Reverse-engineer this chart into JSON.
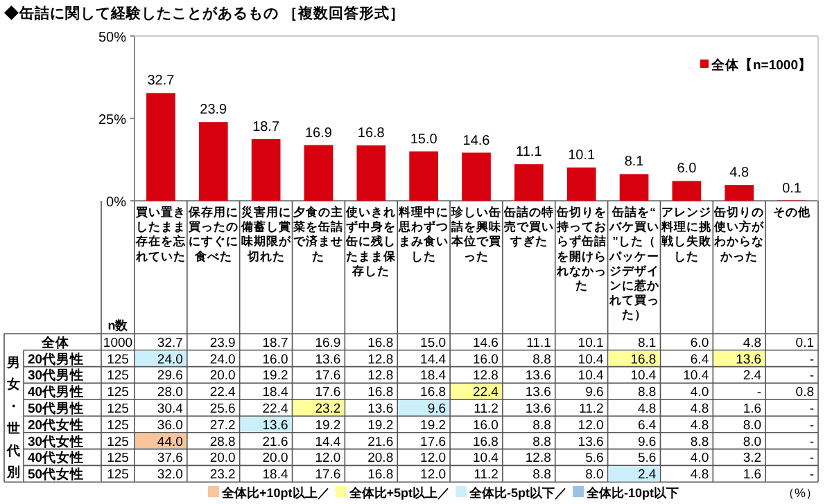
{
  "chart_data": [
    {
      "type": "bar",
      "title": "◆缶詰に関して経験したことがあるもの ［複数回答形式］",
      "categories": [
        "買い置きしたまま存在を忘れていた",
        "保存用に買ったのにすぐに食べた",
        "災害用に備蓄し賞味期限が切れた",
        "夕食の主菜を缶詰で済ませた",
        "使いきれず中身を缶に残したまま保存した",
        "料理中に思わずつまみ食いした",
        "珍しい缶詰を興味本位で買った",
        "缶詰の特売で買いすぎた",
        "缶切りを持っておらず缶詰を開けられなかった",
        "缶詰を“バケ買い”した（パッケージデザインに惹かれて買った）",
        "アレンジ料理に挑戦し失敗した",
        "缶切りの使い方がわからなかった",
        "その他"
      ],
      "series": [
        {
          "name": "全体【n=1000】",
          "color": "#d7000f",
          "values": [
            32.7,
            23.9,
            18.7,
            16.9,
            16.8,
            15.0,
            14.6,
            11.1,
            10.1,
            8.1,
            6.0,
            4.8,
            0.1
          ],
          "value_labels": [
            "32.7",
            "23.9",
            "18.7",
            "16.9",
            "16.8",
            "15.0",
            "14.6",
            "11.1",
            "10.1",
            "8.1",
            "6.0",
            "4.8",
            "0.1"
          ]
        }
      ],
      "ylim": [
        0,
        50
      ],
      "yticks": [
        {
          "value": 0,
          "label": "0%"
        },
        {
          "value": 25,
          "label": "25%"
        },
        {
          "value": 50,
          "label": "50%"
        }
      ],
      "legend": "top right"
    },
    {
      "type": "heatmap",
      "tick_labels": "y",
      "categories": [
        "買い置きしたまま存在を忘れていた",
        "保存用に買ったのにすぐに食べた",
        "災害用に備蓄し賞味期限が切れた",
        "夕食の主菜を缶詰で済ませた",
        "使いきれず中身を缶に残したまま保存した",
        "料理中に思わずつまみ食いした",
        "珍しい缶詰を興味本位で買った",
        "缶詰の特売で買いすぎた",
        "缶切りを持っておらず缶詰を開けられなかった",
        "缶詰を“バケ買い”した（パッケージデザインに惹かれて買った）",
        "アレンジ料理に挑戦し失敗した",
        "缶切りの使い方がわからなかった",
        "その他"
      ],
      "y_categories": [
        "全体",
        "20代男性",
        "30代男性",
        "40代男性",
        "50代男性",
        "20代女性",
        "30代女性",
        "40代女性",
        "50代女性"
      ],
      "y2_categories": [
        "1000",
        "125",
        "125",
        "125",
        "125",
        "125",
        "125",
        "125",
        "125"
      ],
      "y2label": "n数",
      "cells": [
        [
          32.7,
          23.9,
          18.7,
          16.9,
          16.8,
          15.0,
          14.6,
          11.1,
          10.1,
          8.1,
          6.0,
          4.8,
          0.1
        ],
        [
          24.0,
          24.0,
          16.0,
          13.6,
          12.8,
          14.4,
          16.0,
          8.8,
          10.4,
          16.8,
          6.4,
          13.6,
          null
        ],
        [
          29.6,
          20.0,
          19.2,
          17.6,
          12.8,
          18.4,
          12.8,
          13.6,
          10.4,
          10.4,
          10.4,
          2.4,
          null
        ],
        [
          28.0,
          22.4,
          18.4,
          17.6,
          16.8,
          16.8,
          22.4,
          13.6,
          9.6,
          8.8,
          4.0,
          null,
          0.8
        ],
        [
          30.4,
          25.6,
          22.4,
          23.2,
          13.6,
          9.6,
          11.2,
          13.6,
          11.2,
          4.8,
          4.8,
          1.6,
          null
        ],
        [
          36.0,
          27.2,
          13.6,
          19.2,
          19.2,
          19.2,
          16.0,
          8.8,
          12.0,
          6.4,
          4.8,
          8.0,
          null
        ],
        [
          44.0,
          28.8,
          21.6,
          14.4,
          21.6,
          17.6,
          16.8,
          8.8,
          13.6,
          9.6,
          8.8,
          8.0,
          null
        ],
        [
          37.6,
          20.0,
          20.0,
          12.0,
          20.8,
          12.0,
          10.4,
          12.8,
          5.6,
          5.6,
          4.0,
          3.2,
          null
        ],
        [
          32.0,
          23.2,
          18.4,
          17.6,
          16.8,
          12.0,
          11.2,
          8.8,
          8.0,
          2.4,
          4.8,
          1.6,
          null
        ]
      ],
      "cell_labels": [
        [
          "32.7",
          "23.9",
          "18.7",
          "16.9",
          "16.8",
          "15.0",
          "14.6",
          "11.1",
          "10.1",
          "8.1",
          "6.0",
          "4.8",
          "0.1"
        ],
        [
          "24.0",
          "24.0",
          "16.0",
          "13.6",
          "12.8",
          "14.4",
          "16.0",
          "8.8",
          "10.4",
          "16.8",
          "6.4",
          "13.6",
          "-"
        ],
        [
          "29.6",
          "20.0",
          "19.2",
          "17.6",
          "12.8",
          "18.4",
          "12.8",
          "13.6",
          "10.4",
          "10.4",
          "10.4",
          "2.4",
          "-"
        ],
        [
          "28.0",
          "22.4",
          "18.4",
          "17.6",
          "16.8",
          "16.8",
          "22.4",
          "13.6",
          "9.6",
          "8.8",
          "4.0",
          "-",
          "0.8"
        ],
        [
          "30.4",
          "25.6",
          "22.4",
          "23.2",
          "13.6",
          "9.6",
          "11.2",
          "13.6",
          "11.2",
          "4.8",
          "4.8",
          "1.6",
          "-"
        ],
        [
          "36.0",
          "27.2",
          "13.6",
          "19.2",
          "19.2",
          "19.2",
          "16.0",
          "8.8",
          "12.0",
          "6.4",
          "4.8",
          "8.0",
          "-"
        ],
        [
          "44.0",
          "28.8",
          "21.6",
          "14.4",
          "21.6",
          "17.6",
          "16.8",
          "8.8",
          "13.6",
          "9.6",
          "8.8",
          "8.0",
          "-"
        ],
        [
          "37.6",
          "20.0",
          "20.0",
          "12.0",
          "20.8",
          "12.0",
          "10.4",
          "12.8",
          "5.6",
          "5.6",
          "4.0",
          "3.2",
          "-"
        ],
        [
          "32.0",
          "23.2",
          "18.4",
          "17.6",
          "16.8",
          "12.0",
          "11.2",
          "8.8",
          "8.0",
          "2.4",
          "4.8",
          "1.6",
          "-"
        ]
      ],
      "annotations": [
        "男女・世代別",
        "全体比+10pt以上／",
        "全体比+5pt以上／",
        "全体比-5pt以下／",
        "全体比-10pt以下",
        "（%）"
      ]
    }
  ]
}
